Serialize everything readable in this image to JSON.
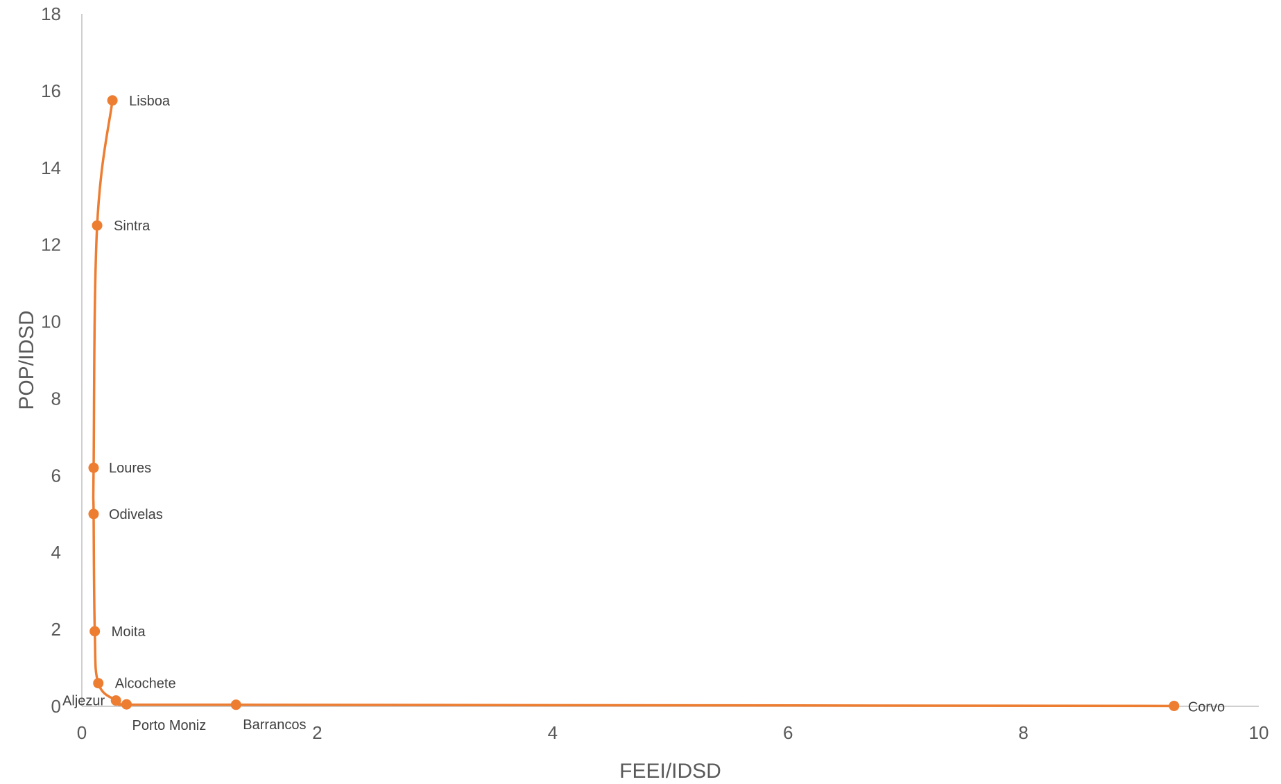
{
  "chart_data": {
    "type": "scatter",
    "title": "",
    "xlabel": "FEEI/IDSD",
    "ylabel": "POP/IDSD",
    "xlim": [
      0,
      10
    ],
    "ylim": [
      0,
      18
    ],
    "x_ticks": [
      "0",
      "2",
      "4",
      "6",
      "8",
      "10"
    ],
    "y_ticks": [
      "0",
      "2",
      "4",
      "6",
      "8",
      "10",
      "12",
      "14",
      "16",
      "18"
    ],
    "grid": false,
    "line_style": "smoothed",
    "series": [
      {
        "color": "#ED7D31",
        "points": [
          {
            "label": "Lisboa",
            "x": 0.26,
            "y": 15.75
          },
          {
            "label": "Sintra",
            "x": 0.13,
            "y": 12.5
          },
          {
            "label": "Loures",
            "x": 0.1,
            "y": 6.2
          },
          {
            "label": "Odivelas",
            "x": 0.1,
            "y": 5.0
          },
          {
            "label": "Moita",
            "x": 0.11,
            "y": 1.95
          },
          {
            "label": "Alcochete",
            "x": 0.14,
            "y": 0.6
          },
          {
            "label": "Aljezur",
            "x": 0.29,
            "y": 0.15
          },
          {
            "label": "Porto Moniz",
            "x": 0.38,
            "y": 0.05
          },
          {
            "label": "Barrancos",
            "x": 1.31,
            "y": 0.04
          },
          {
            "label": "Corvo",
            "x": 9.28,
            "y": 0.01
          }
        ]
      }
    ]
  }
}
